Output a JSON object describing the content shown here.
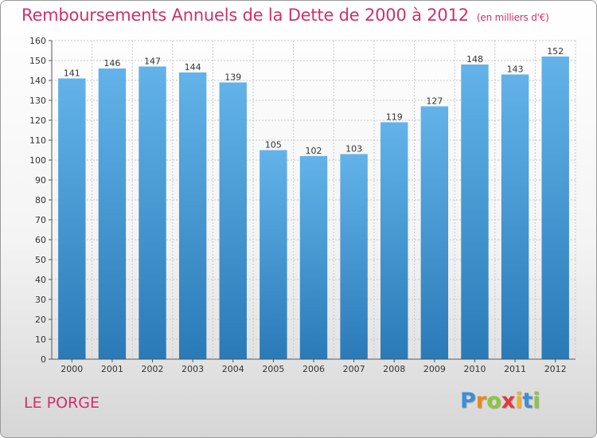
{
  "title": "Remboursements Annuels de la Dette de 2000 à 2012",
  "units_note": "(en milliers d'€)",
  "commune": "LE PORGE",
  "logo": {
    "letters": [
      "P",
      "r",
      "o",
      "x",
      "i",
      "t",
      "i"
    ],
    "colors": [
      "#3a8fd8",
      "#e98a1f",
      "#8cc63f",
      "#e23a3a",
      "#f2b21d",
      "#3a8fd8",
      "#8cc63f"
    ]
  },
  "colors": {
    "bar_top": "#63b3ea",
    "bar_bottom": "#2a7ab8",
    "title": "#d0306a",
    "grid": "#c9c9c9"
  },
  "chart_data": {
    "type": "bar",
    "title": "Remboursements Annuels de la Dette de 2000 à 2012",
    "xlabel": "",
    "ylabel": "",
    "categories": [
      "2000",
      "2001",
      "2002",
      "2003",
      "2004",
      "2005",
      "2006",
      "2007",
      "2008",
      "2009",
      "2010",
      "2011",
      "2012"
    ],
    "values": [
      141,
      146,
      147,
      144,
      139,
      105,
      102,
      103,
      119,
      127,
      148,
      143,
      152
    ],
    "ylim": [
      0,
      160
    ],
    "yticks": [
      0,
      10,
      20,
      30,
      40,
      50,
      60,
      70,
      80,
      90,
      100,
      110,
      120,
      130,
      140,
      150,
      160
    ],
    "grid": true,
    "data_labels": true
  }
}
